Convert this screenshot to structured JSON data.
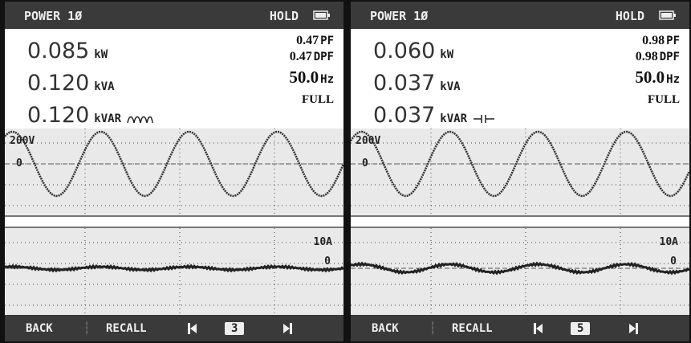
{
  "panels": [
    {
      "header": {
        "title": "POWER 1Ø",
        "status": "HOLD"
      },
      "readings": [
        {
          "value": "0.085",
          "unit": "kW"
        },
        {
          "value": "0.120",
          "unit": "kVA"
        },
        {
          "value": "0.120",
          "unit": "kVAR"
        }
      ],
      "pf": {
        "value": "0.47",
        "unit": "PF"
      },
      "dpf": {
        "value": "0.47",
        "unit": "DPF"
      },
      "frequency": {
        "value": "50.0",
        "unit": "Hz"
      },
      "range": "FULL",
      "voltage_scale": "200V",
      "voltage_zero": "0",
      "current_scale": "10A",
      "current_zero": "0",
      "footer": {
        "back": "BACK",
        "recall": "RECALL",
        "page": "3"
      }
    },
    {
      "header": {
        "title": "POWER 1Ø",
        "status": "HOLD"
      },
      "readings": [
        {
          "value": "0.060",
          "unit": "kW"
        },
        {
          "value": "0.037",
          "unit": "kVA"
        },
        {
          "value": "0.037",
          "unit": "kVAR"
        }
      ],
      "pf": {
        "value": "0.98",
        "unit": "PF"
      },
      "dpf": {
        "value": "0.98",
        "unit": "DPF"
      },
      "frequency": {
        "value": "50.0",
        "unit": "Hz"
      },
      "range": "FULL",
      "voltage_scale": "200V",
      "voltage_zero": "0",
      "current_scale": "10A",
      "current_zero": "0",
      "footer": {
        "back": "BACK",
        "recall": "RECALL",
        "page": "5"
      }
    }
  ]
}
